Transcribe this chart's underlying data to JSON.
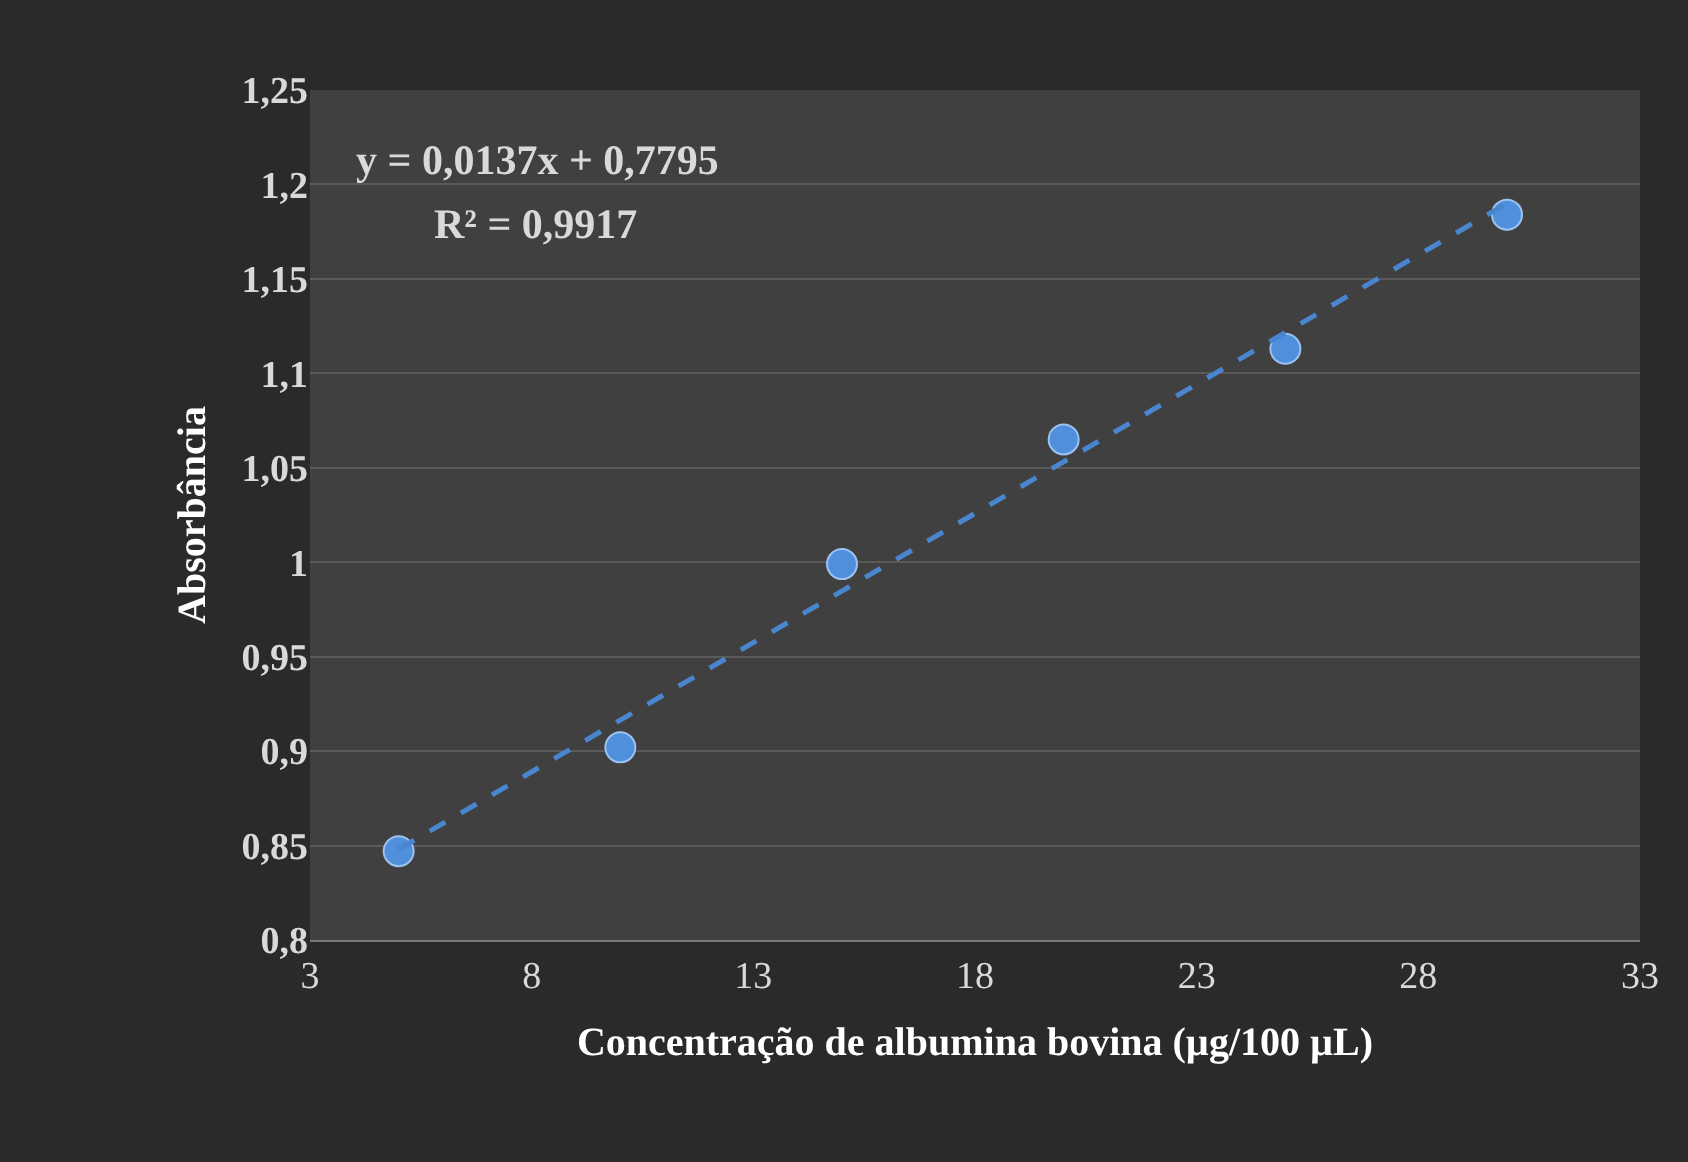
{
  "chart_data": {
    "type": "scatter",
    "xlabel": "Concentração de albumina bovina (µg/100 µL)",
    "ylabel": "Absorbância",
    "annotations": [
      "y = 0,0137x + 0,7795",
      "R² = 0,9917"
    ],
    "series": [
      {
        "type": "scatter",
        "color": "#4f8fdc",
        "marker": "circle",
        "x": [
          5,
          10,
          15,
          20,
          25,
          30
        ],
        "values": [
          0.847,
          0.902,
          0.999,
          1.065,
          1.113,
          1.184
        ]
      },
      {
        "type": "line",
        "color": "#4a86d0",
        "line_style": "dashed",
        "marker": "none",
        "x": [
          5,
          30
        ],
        "values": [
          0.848,
          1.19
        ]
      }
    ],
    "xlim": [
      3,
      33
    ],
    "xticks": [
      3,
      8,
      13,
      18,
      23,
      28,
      33
    ],
    "ylim": [
      0.8,
      1.25
    ],
    "yticks": [
      {
        "value": 0.8,
        "label": "0,8"
      },
      {
        "value": 0.85,
        "label": "0,85"
      },
      {
        "value": 0.9,
        "label": "0,9"
      },
      {
        "value": 0.95,
        "label": "0,95"
      },
      {
        "value": 1,
        "label": "1"
      },
      {
        "value": 1.05,
        "label": "1,05"
      },
      {
        "value": 1.1,
        "label": "1,1"
      },
      {
        "value": 1.15,
        "label": "1,15"
      },
      {
        "value": 1.2,
        "label": "1,2"
      },
      {
        "value": 1.25,
        "label": "1,25"
      }
    ],
    "grid": "y"
  }
}
